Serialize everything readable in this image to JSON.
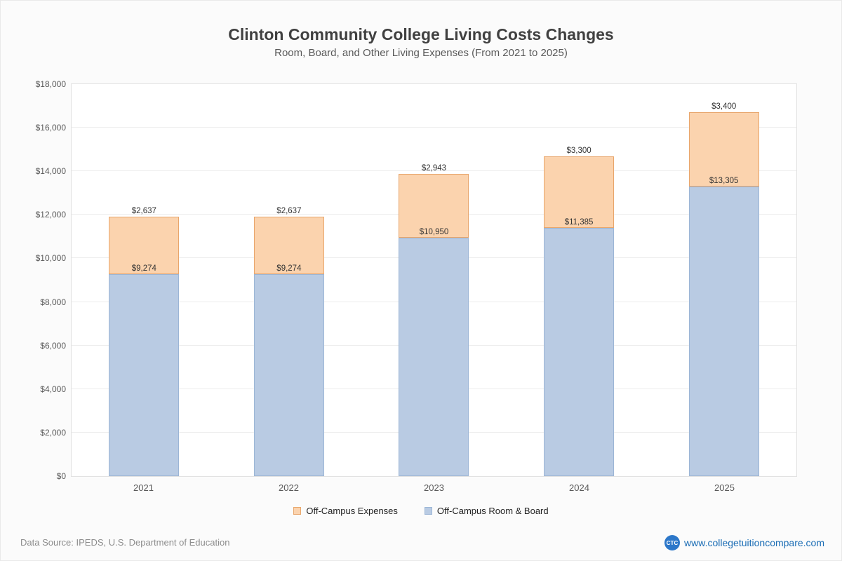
{
  "header": {
    "title": "Clinton Community College Living Costs Changes",
    "subtitle": "Room, Board, and Other Living Expenses (From 2021 to 2025)"
  },
  "chart_data": {
    "type": "bar",
    "stacked": true,
    "title": "Clinton Community College Living Costs Changes",
    "subtitle": "Room, Board, and Other Living Expenses (From 2021 to 2025)",
    "categories": [
      "2021",
      "2022",
      "2023",
      "2024",
      "2025"
    ],
    "series": [
      {
        "name": "Off-Campus Room & Board",
        "color": "#b9cbe3",
        "border_color": "#9cb6d6",
        "values": [
          9274,
          9274,
          10950,
          11385,
          13305
        ],
        "labels": [
          "$9,274",
          "$9,274",
          "$10,950",
          "$11,385",
          "$13,305"
        ]
      },
      {
        "name": "Off-Campus Expenses",
        "color": "#fbd3ae",
        "border_color": "#e8a66c",
        "values": [
          2637,
          2637,
          2943,
          3300,
          3400
        ],
        "labels": [
          "$2,637",
          "$2,637",
          "$2,943",
          "$3,300",
          "$3,400"
        ]
      }
    ],
    "ylim": [
      0,
      18000
    ],
    "ytick_step": 2000,
    "ytick_labels": [
      "$0",
      "$2,000",
      "$4,000",
      "$6,000",
      "$8,000",
      "$10,000",
      "$12,000",
      "$14,000",
      "$16,000",
      "$18,000"
    ],
    "grid": true,
    "legend_position": "bottom",
    "legend": [
      {
        "label": "Off-Campus Expenses",
        "color": "#fbd3ae",
        "border_color": "#e8a66c"
      },
      {
        "label": "Off-Campus Room & Board",
        "color": "#b9cbe3",
        "border_color": "#9cb6d6"
      }
    ]
  },
  "footer": {
    "source": "Data Source: IPEDS, U.S. Department of Education",
    "site": "www.collegetuitioncompare.com",
    "logo_text": "CTC"
  }
}
